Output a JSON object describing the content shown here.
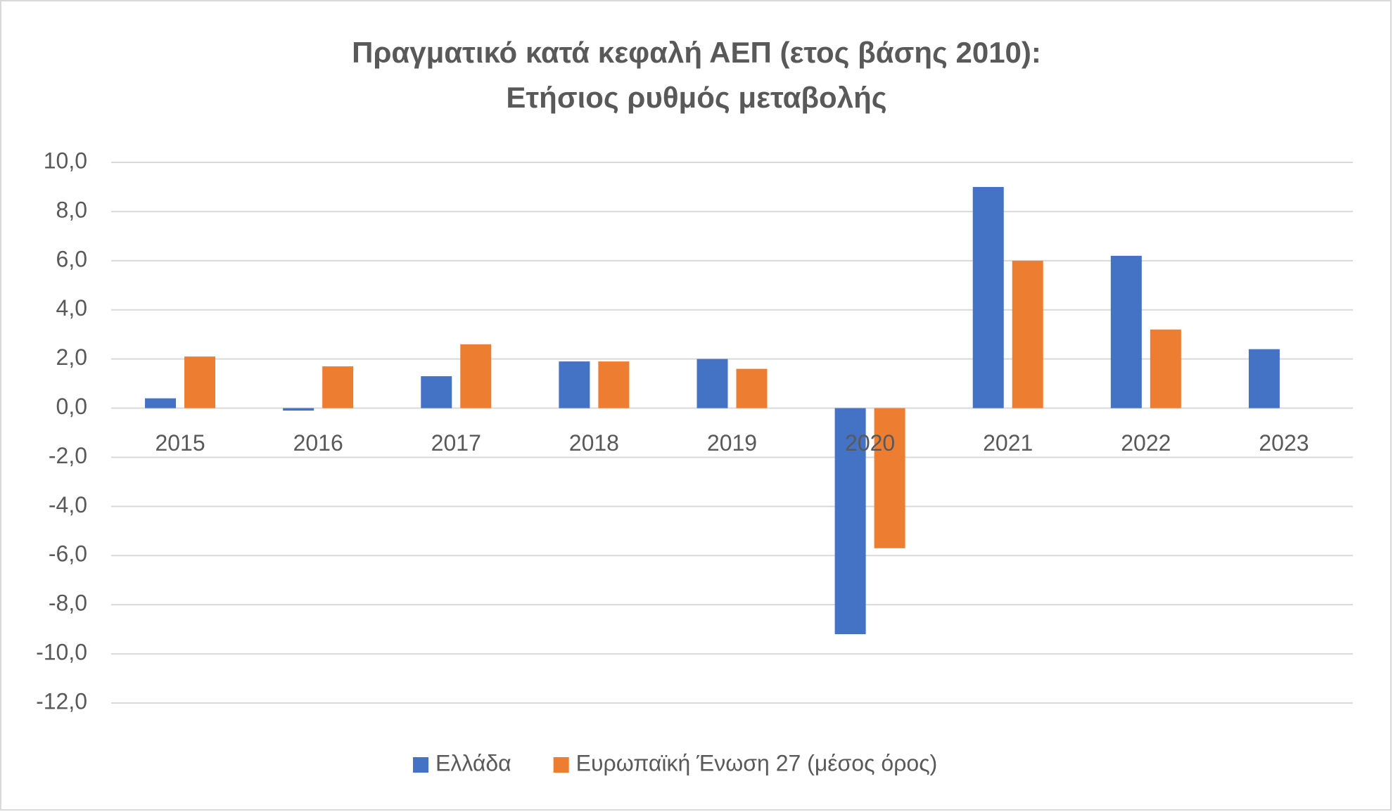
{
  "chart_data": {
    "type": "bar",
    "title": [
      "Πραγματικό κατά κεφαλή ΑΕΠ (ετος βάσης 2010):",
      "Ετήσιος ρυθμός μεταβολής"
    ],
    "categories": [
      "2015",
      "2016",
      "2017",
      "2018",
      "2019",
      "2020",
      "2021",
      "2022",
      "2023"
    ],
    "series": [
      {
        "name": "Ελλάδα",
        "color": "#4472c4",
        "values": [
          0.4,
          -0.1,
          1.3,
          1.9,
          2.0,
          -9.2,
          9.0,
          6.2,
          2.4
        ]
      },
      {
        "name": "Ευρωπαϊκή Ένωση 27 (μέσος όρος)",
        "color": "#ed7d31",
        "values": [
          2.1,
          1.7,
          2.6,
          1.9,
          1.6,
          -5.7,
          6.0,
          3.2,
          null
        ]
      }
    ],
    "ylim": [
      -12,
      10
    ],
    "yticks": [
      {
        "value": -12,
        "label": "-12,0"
      },
      {
        "value": -10,
        "label": "-10,0"
      },
      {
        "value": -8,
        "label": "-8,0"
      },
      {
        "value": -6,
        "label": "-6,0"
      },
      {
        "value": -4,
        "label": "-4,0"
      },
      {
        "value": -2,
        "label": "-2,0"
      },
      {
        "value": 0,
        "label": "0,0"
      },
      {
        "value": 2,
        "label": "2,0"
      },
      {
        "value": 4,
        "label": "4,0"
      },
      {
        "value": 6,
        "label": "6,0"
      },
      {
        "value": 8,
        "label": "8,0"
      },
      {
        "value": 10,
        "label": "10,0"
      }
    ],
    "grid": true,
    "legend": "bottom"
  }
}
